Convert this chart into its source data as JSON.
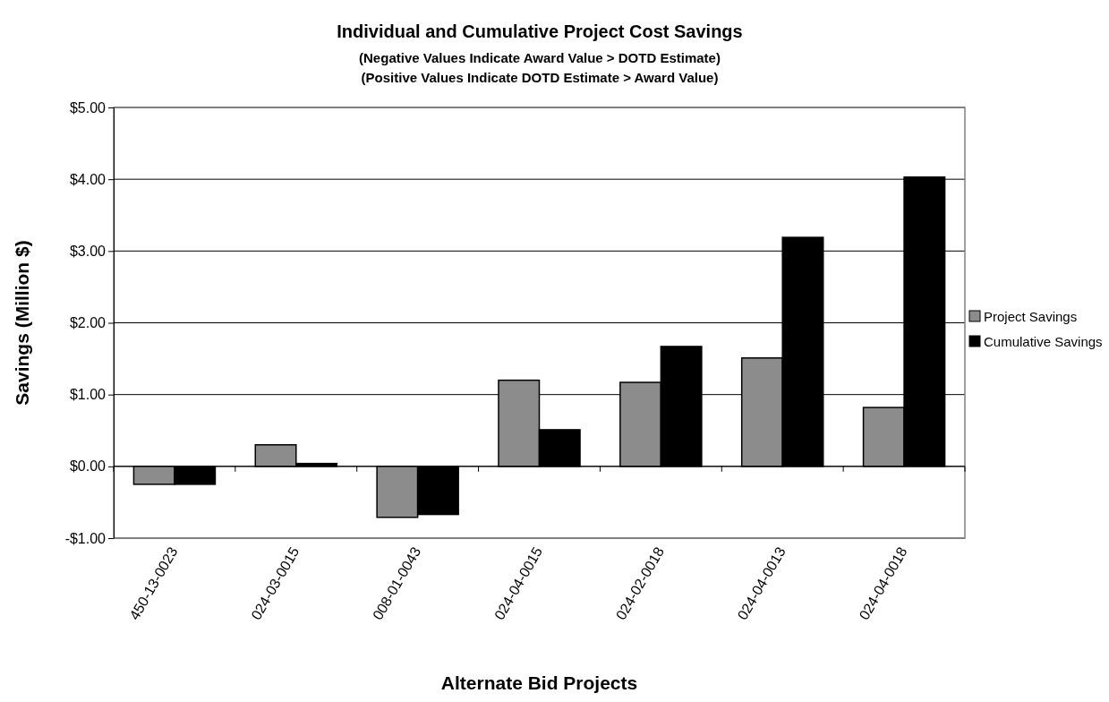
{
  "chart_data": {
    "type": "bar",
    "title": "Individual and Cumulative Project Cost Savings",
    "subtitle": "(Negative Values Indicate Award Value > DOTD Estimate)\n(Positive Values Indicate DOTD Estimate > Award Value)",
    "xlabel": "Alternate Bid Projects",
    "ylabel": "Savings (Million $)",
    "categories": [
      "450-13-0023",
      "024-03-0015",
      "008-01-0043",
      "024-04-0015",
      "024-02-0018",
      "024-04-0013",
      "024-04-0018"
    ],
    "series": [
      {
        "name": "Project Savings",
        "color": "#8c8c8c",
        "values": [
          -0.25,
          0.3,
          -0.71,
          1.2,
          1.17,
          1.51,
          0.82
        ]
      },
      {
        "name": "Cumulative Savings",
        "color": "#000000",
        "values": [
          -0.25,
          0.04,
          -0.67,
          0.51,
          1.67,
          3.19,
          4.03
        ]
      }
    ],
    "ylim": [
      -1,
      5
    ],
    "yticks": [
      {
        "value": -1,
        "label": "-$1.00"
      },
      {
        "value": 0,
        "label": "$0.00"
      },
      {
        "value": 1,
        "label": "$1.00"
      },
      {
        "value": 2,
        "label": "$2.00"
      },
      {
        "value": 3,
        "label": "$3.00"
      },
      {
        "value": 4,
        "label": "$4.00"
      },
      {
        "value": 5,
        "label": "$5.00"
      }
    ],
    "grid": "y",
    "legend": "right"
  }
}
